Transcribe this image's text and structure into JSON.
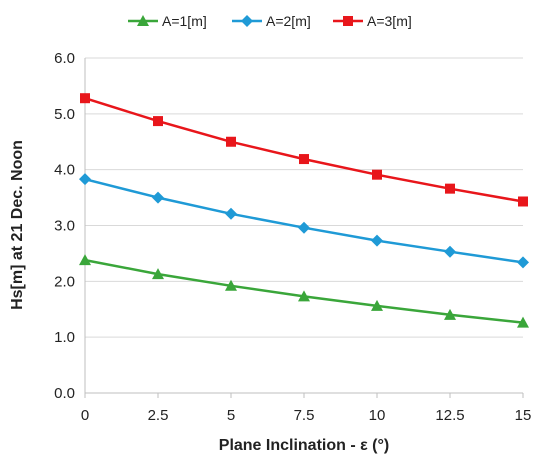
{
  "chart_data": {
    "type": "line",
    "xlabel": "Plane Inclination - ε (°)",
    "ylabel": "Hs[m] at 21 Dec. Noon",
    "x": [
      0,
      2.5,
      5,
      7.5,
      10,
      12.5,
      15
    ],
    "x_tick_labels": [
      "0",
      "2.5",
      "5",
      "7.5",
      "10",
      "12.5",
      "15"
    ],
    "y_tick_labels": [
      "0.0",
      "1.0",
      "2.0",
      "3.0",
      "4.0",
      "5.0",
      "6.0"
    ],
    "xlim": [
      0,
      15
    ],
    "ylim": [
      0,
      6
    ],
    "grid": "horizontal",
    "legend_position": "top",
    "series": [
      {
        "name": "A=1[m]",
        "color": "#3aa63a",
        "marker": "triangle",
        "values": [
          2.38,
          2.13,
          1.92,
          1.73,
          1.56,
          1.4,
          1.26
        ]
      },
      {
        "name": "A=2[m]",
        "color": "#1f9ad6",
        "marker": "diamond",
        "values": [
          3.83,
          3.5,
          3.21,
          2.96,
          2.73,
          2.53,
          2.34
        ]
      },
      {
        "name": "A=3[m]",
        "color": "#e8161b",
        "marker": "square",
        "values": [
          5.28,
          4.87,
          4.5,
          4.19,
          3.91,
          3.66,
          3.43
        ]
      }
    ]
  }
}
